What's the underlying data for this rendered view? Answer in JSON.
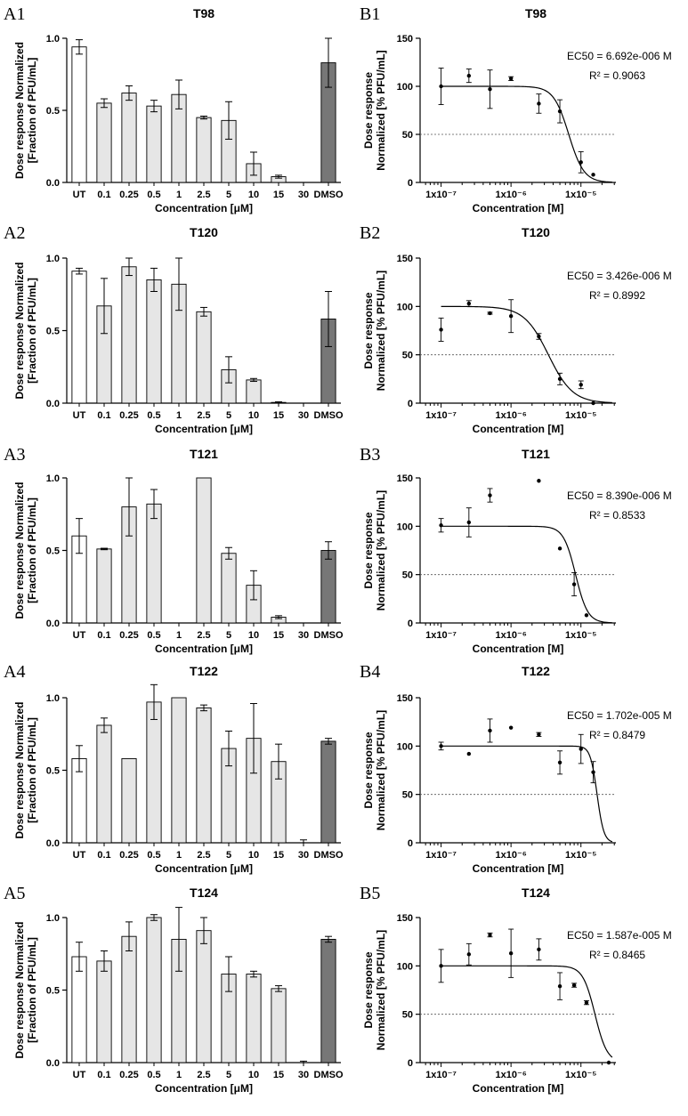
{
  "chart_data": [
    {
      "panel": "A1",
      "type": "bar",
      "title": "T98",
      "xlabel": "Concentration [μM]",
      "ylabel": [
        "Dose response Normalized",
        "[Fraction of PFU/mL]"
      ],
      "ylim": [
        0,
        1.0
      ],
      "yticks": [
        "0.0",
        "0.5",
        "1.0"
      ],
      "categories": [
        "UT",
        "0.1",
        "0.25",
        "0.5",
        "1",
        "2.5",
        "5",
        "10",
        "15",
        "30",
        "DMSO"
      ],
      "values": [
        0.94,
        0.55,
        0.62,
        0.53,
        0.61,
        0.45,
        0.43,
        0.13,
        0.04,
        0,
        0.83
      ],
      "errors": [
        0.05,
        0.03,
        0.05,
        0.04,
        0.1,
        0.01,
        0.13,
        0.08,
        0.01,
        0,
        0.17
      ],
      "fill_styles": [
        "white",
        "light",
        "light",
        "light",
        "light",
        "light",
        "light",
        "light",
        "light",
        "light",
        "dark"
      ],
      "colors": {
        "white": "#ffffff",
        "light": "#e6e6e6",
        "dark": "#777777"
      }
    },
    {
      "panel": "B1",
      "type": "line",
      "title": "T98",
      "xlabel": "Concentration [M]",
      "ylabel": [
        "Dose response",
        "Normalized [% PFU/mL]"
      ],
      "ylim": [
        0,
        150
      ],
      "yticks": [
        "0",
        "50",
        "100",
        "150"
      ],
      "xticks": [
        "1x10⁻⁷",
        "1x10⁻⁶",
        "1x10⁻⁵"
      ],
      "ec50_label": "EC50 = 6.692e-006 M",
      "r2_label": "R² = 0.9063",
      "ec50": 6.692e-06,
      "hill": 4.0,
      "top": 100,
      "bottom": 0,
      "reference_line": 50,
      "x": [
        1e-07,
        2.5e-07,
        5e-07,
        1e-06,
        2.5e-06,
        5e-06,
        1e-05,
        1.5e-05
      ],
      "y": [
        100,
        111,
        97,
        108,
        82,
        74,
        21,
        8
      ],
      "errors": [
        19,
        7,
        20,
        2,
        10,
        12,
        11,
        0
      ]
    },
    {
      "panel": "A2",
      "type": "bar",
      "title": "T120",
      "xlabel": "Concentration [μM]",
      "ylabel": [
        "Dose response Normalized",
        "[Fraction of PFU/mL]"
      ],
      "ylim": [
        0,
        1.0
      ],
      "yticks": [
        "0.0",
        "0.5",
        "1.0"
      ],
      "categories": [
        "UT",
        "0.1",
        "0.25",
        "0.5",
        "1",
        "2.5",
        "5",
        "10",
        "15",
        "30",
        "DMSO"
      ],
      "values": [
        0.91,
        0.67,
        0.94,
        0.85,
        0.82,
        0.63,
        0.23,
        0.16,
        0.005,
        0,
        0.58
      ],
      "errors": [
        0.02,
        0.19,
        0.06,
        0.08,
        0.18,
        0.03,
        0.09,
        0.01,
        0.004,
        0,
        0.19
      ],
      "fill_styles": [
        "white",
        "light",
        "light",
        "light",
        "light",
        "light",
        "light",
        "light",
        "light",
        "light",
        "dark"
      ],
      "colors": {
        "white": "#ffffff",
        "light": "#e6e6e6",
        "dark": "#777777"
      }
    },
    {
      "panel": "B2",
      "type": "line",
      "title": "T120",
      "xlabel": "Concentration [M]",
      "ylabel": [
        "Dose response",
        "Normalized [% PFU/mL]"
      ],
      "ylim": [
        0,
        150
      ],
      "yticks": [
        "0",
        "50",
        "100",
        "150"
      ],
      "xticks": [
        "1x10⁻⁷",
        "1x10⁻⁶",
        "1x10⁻⁵"
      ],
      "ec50_label": "EC50 = 3.426e-006 M",
      "r2_label": "R² = 0.8992",
      "ec50": 3.426e-06,
      "hill": 2.5,
      "top": 100,
      "bottom": 0,
      "reference_line": 50,
      "x": [
        1e-07,
        2.5e-07,
        5e-07,
        1e-06,
        2.5e-06,
        5e-06,
        1e-05,
        1.5e-05
      ],
      "y": [
        76,
        103,
        93,
        90,
        69,
        25,
        19,
        0
      ],
      "errors": [
        12,
        3,
        1,
        17,
        3,
        6,
        4,
        0
      ]
    },
    {
      "panel": "A3",
      "type": "bar",
      "title": "T121",
      "xlabel": "Concentration [μM]",
      "ylabel": [
        "Dose response Normalized",
        "[Fraction of PFU/mL]"
      ],
      "ylim": [
        0,
        1.0
      ],
      "yticks": [
        "0.0",
        "0.5",
        "1.0"
      ],
      "categories": [
        "UT",
        "0.1",
        "0.25",
        "0.5",
        "1",
        "2.5",
        "5",
        "10",
        "15",
        "30",
        "DMSO"
      ],
      "values": [
        0.6,
        0.51,
        0.8,
        0.82,
        0,
        1.0,
        0.48,
        0.26,
        0.04,
        0,
        0.5
      ],
      "errors": [
        0.12,
        0.005,
        0.2,
        0.1,
        0,
        0,
        0.04,
        0.1,
        0.01,
        0,
        0.06
      ],
      "fill_styles": [
        "white",
        "light",
        "light",
        "light",
        "light",
        "light",
        "light",
        "light",
        "light",
        "light",
        "dark"
      ],
      "colors": {
        "white": "#ffffff",
        "light": "#e6e6e6",
        "dark": "#777777"
      }
    },
    {
      "panel": "B3",
      "type": "line",
      "title": "T121",
      "xlabel": "Concentration [M]",
      "ylabel": [
        "Dose response",
        "Normalized [% PFU/mL]"
      ],
      "ylim": [
        0,
        150
      ],
      "yticks": [
        "0",
        "50",
        "100",
        "150"
      ],
      "xticks": [
        "1x10⁻⁷",
        "1x10⁻⁶",
        "1x10⁻⁵"
      ],
      "ec50_label": "EC50 = 8.390e-006 M",
      "r2_label": "R² = 0.8533",
      "ec50": 8.39e-06,
      "hill": 5.0,
      "top": 100,
      "bottom": 0,
      "reference_line": 50,
      "x": [
        1e-07,
        2.5e-07,
        5e-07,
        2.5e-06,
        5e-06,
        8e-06,
        1.2e-05
      ],
      "y": [
        101,
        104,
        132,
        147,
        77,
        40,
        8
      ],
      "errors": [
        7,
        15,
        7,
        0,
        0,
        12,
        0
      ]
    },
    {
      "panel": "A4",
      "type": "bar",
      "title": "T122",
      "xlabel": "Concentration [μM]",
      "ylabel": [
        "Dose response Normalized",
        "[Fraction of PFU/mL]"
      ],
      "ylim": [
        0,
        1.0
      ],
      "yticks": [
        "0.0",
        "0.5",
        "1.0"
      ],
      "categories": [
        "UT",
        "0.1",
        "0.25",
        "0.5",
        "1",
        "2.5",
        "5",
        "10",
        "15",
        "30",
        "DMSO"
      ],
      "values": [
        0.58,
        0.81,
        0.58,
        0.97,
        1.0,
        0.93,
        0.65,
        0.72,
        0.56,
        0,
        0.7
      ],
      "errors": [
        0.09,
        0.05,
        0,
        0.12,
        0,
        0.02,
        0.12,
        0.24,
        0.12,
        0.02,
        0.02
      ],
      "fill_styles": [
        "white",
        "light",
        "light",
        "light",
        "light",
        "light",
        "light",
        "light",
        "light",
        "light",
        "dark"
      ],
      "colors": {
        "white": "#ffffff",
        "light": "#e6e6e6",
        "dark": "#777777"
      }
    },
    {
      "panel": "B4",
      "type": "line",
      "title": "T122",
      "xlabel": "Concentration [M]",
      "ylabel": [
        "Dose response",
        "Normalized [% PFU/mL]"
      ],
      "ylim": [
        0,
        150
      ],
      "yticks": [
        "0",
        "50",
        "100",
        "150"
      ],
      "xticks": [
        "1x10⁻⁷",
        "1x10⁻⁶",
        "1x10⁻⁵"
      ],
      "ec50_label": "EC50 = 1.702e-005 M",
      "r2_label": "R² = 0.8479",
      "ec50": 1.702e-05,
      "hill": 9.0,
      "top": 100,
      "bottom": 0,
      "reference_line": 50,
      "x": [
        1e-07,
        2.5e-07,
        5e-07,
        1e-06,
        2.5e-06,
        5e-06,
        1e-05,
        1.5e-05
      ],
      "y": [
        100,
        92,
        116,
        119,
        112,
        83,
        97,
        73
      ],
      "errors": [
        4,
        0,
        12,
        0,
        2,
        12,
        15,
        11
      ]
    },
    {
      "panel": "A5",
      "type": "bar",
      "title": "T124",
      "xlabel": "Concentration [μM]",
      "ylabel": [
        "Dose response Normalized",
        "[Fraction of PFU/mL]"
      ],
      "ylim": [
        0,
        1.0
      ],
      "yticks": [
        "0.0",
        "0.5",
        "1.0"
      ],
      "categories": [
        "UT",
        "0.1",
        "0.25",
        "0.5",
        "1",
        "2.5",
        "5",
        "10",
        "15",
        "30",
        "DMSO"
      ],
      "values": [
        0.73,
        0.7,
        0.87,
        1.0,
        0.85,
        0.91,
        0.61,
        0.61,
        0.51,
        0,
        0.85
      ],
      "errors": [
        0.1,
        0.07,
        0.1,
        0.02,
        0.22,
        0.09,
        0.12,
        0.02,
        0.02,
        0.01,
        0.02
      ],
      "fill_styles": [
        "white",
        "light",
        "light",
        "light",
        "light",
        "light",
        "light",
        "light",
        "light",
        "light",
        "dark"
      ],
      "colors": {
        "white": "#ffffff",
        "light": "#e6e6e6",
        "dark": "#777777"
      }
    },
    {
      "panel": "B5",
      "type": "line",
      "title": "T124",
      "xlabel": "Concentration [M]",
      "ylabel": [
        "Dose response",
        "Normalized [% PFU/mL]"
      ],
      "ylim": [
        0,
        150
      ],
      "yticks": [
        "0",
        "50",
        "100",
        "150"
      ],
      "xticks": [
        "1x10⁻⁷",
        "1x10⁻⁶",
        "1x10⁻⁵"
      ],
      "ec50_label": "EC50 = 1.587e-005 M",
      "r2_label": "R² = 0.8465",
      "ec50": 1.587e-05,
      "hill": 5.0,
      "top": 100,
      "bottom": 0,
      "reference_line": 50,
      "x": [
        1e-07,
        2.5e-07,
        5e-07,
        1e-06,
        2.5e-06,
        5e-06,
        8e-06,
        1.2e-05,
        2.5e-05
      ],
      "y": [
        100,
        112,
        132,
        113,
        117,
        79,
        80,
        62,
        0
      ],
      "errors": [
        17,
        11,
        2,
        25,
        11,
        14,
        2,
        2,
        0
      ]
    }
  ]
}
